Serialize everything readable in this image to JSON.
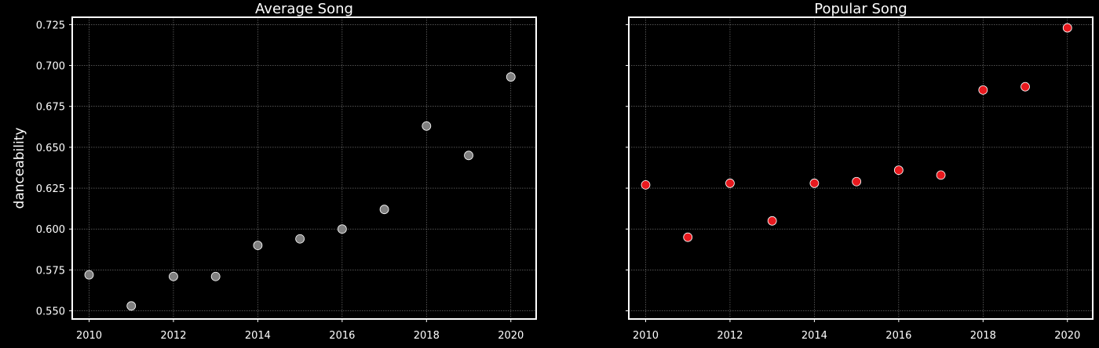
{
  "chart_data": [
    {
      "type": "scatter",
      "title": "Average Song",
      "xlabel": "",
      "ylabel": "danceability",
      "xlim": [
        2009.6,
        2020.6
      ],
      "ylim": [
        0.545,
        0.7295
      ],
      "xticks": [
        2010,
        2012,
        2014,
        2016,
        2018,
        2020
      ],
      "xtick_labels": [
        "2010",
        "2012",
        "2014",
        "2016",
        "2018",
        "2020"
      ],
      "yticks": [
        0.55,
        0.575,
        0.6,
        0.625,
        0.65,
        0.675,
        0.7,
        0.725
      ],
      "ytick_labels": [
        "0.550",
        "0.575",
        "0.600",
        "0.625",
        "0.650",
        "0.675",
        "0.700",
        "0.725"
      ],
      "grid": true,
      "marker_color": "#808080",
      "x": [
        2010,
        2011,
        2012,
        2013,
        2014,
        2015,
        2016,
        2017,
        2018,
        2019,
        2020
      ],
      "y": [
        0.572,
        0.553,
        0.571,
        0.571,
        0.59,
        0.594,
        0.6,
        0.612,
        0.663,
        0.645,
        0.693
      ]
    },
    {
      "type": "scatter",
      "title": "Popular Song",
      "xlabel": "",
      "ylabel": "",
      "xlim": [
        2009.6,
        2020.6
      ],
      "ylim": [
        0.545,
        0.7295
      ],
      "xticks": [
        2010,
        2012,
        2014,
        2016,
        2018,
        2020
      ],
      "xtick_labels": [
        "2010",
        "2012",
        "2014",
        "2016",
        "2018",
        "2020"
      ],
      "yticks": [
        0.55,
        0.575,
        0.6,
        0.625,
        0.65,
        0.675,
        0.7,
        0.725
      ],
      "ytick_labels": [],
      "grid": true,
      "marker_color": "#e8191e",
      "x": [
        2010,
        2011,
        2012,
        2013,
        2014,
        2015,
        2016,
        2017,
        2018,
        2019,
        2020
      ],
      "y": [
        0.627,
        0.595,
        0.628,
        0.605,
        0.628,
        0.629,
        0.636,
        0.633,
        0.685,
        0.687,
        0.723
      ]
    }
  ]
}
